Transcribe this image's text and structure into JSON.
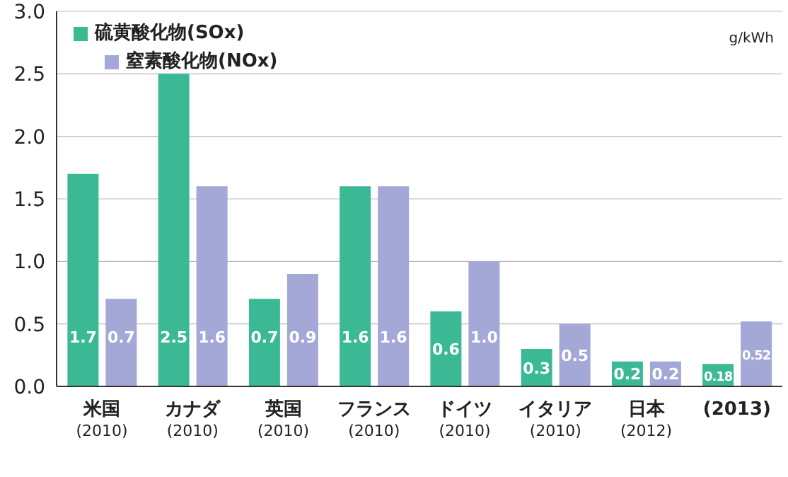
{
  "chart_data": {
    "type": "bar",
    "categories": [
      "米国 (2010)",
      "カナダ (2010)",
      "英国 (2010)",
      "フランス (2010)",
      "ドイツ (2010)",
      "イタリア (2010)",
      "日本 (2012)",
      "(2013)"
    ],
    "series": [
      {
        "name": "硫黄酸化物(SOx)",
        "color": "#3bb995",
        "values": [
          1.7,
          2.5,
          0.7,
          1.6,
          0.6,
          0.3,
          0.2,
          0.18
        ],
        "value_labels": [
          "1.7",
          "2.5",
          "0.7",
          "1.6",
          "0.6",
          "0.3",
          "0.2",
          "0.18"
        ]
      },
      {
        "name": "窒素酸化物(NOx)",
        "color": "#a3a8d6",
        "values": [
          0.7,
          1.6,
          0.9,
          1.6,
          1.0,
          0.5,
          0.2,
          0.52
        ],
        "value_labels": [
          "0.7",
          "1.6",
          "0.9",
          "1.6",
          "1.0",
          "0.5",
          "0.2",
          "0.52"
        ]
      }
    ],
    "ylim": [
      0,
      3
    ],
    "yticks": [
      {
        "value": 0,
        "label": "0.0"
      },
      {
        "value": 0.5,
        "label": "0.5"
      },
      {
        "value": 1,
        "label": "1.0"
      },
      {
        "value": 1.5,
        "label": "1.5"
      },
      {
        "value": 2,
        "label": "2.0"
      },
      {
        "value": 2.5,
        "label": "2.5"
      },
      {
        "value": 3,
        "label": "3.0"
      }
    ],
    "grid": "y",
    "legend": "top left",
    "annotations": [
      "g/kWh"
    ]
  }
}
